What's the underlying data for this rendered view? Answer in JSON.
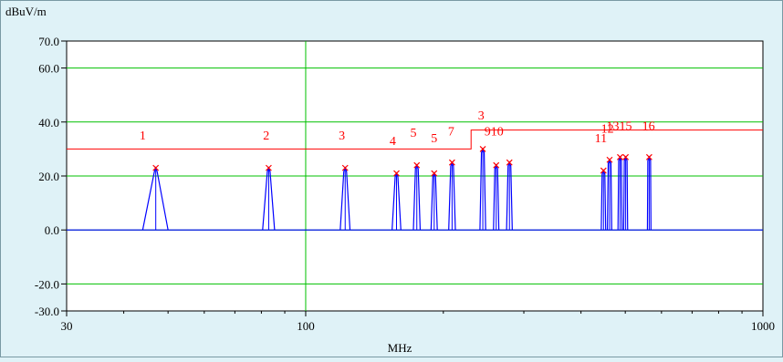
{
  "chart_data": {
    "type": "line",
    "title": "",
    "ylabel": "dBuV/m",
    "xlabel": "MHz",
    "xscale": "log",
    "xlim": [
      30,
      1000
    ],
    "ylim": [
      -30,
      70
    ],
    "yticks": [
      -30,
      -20,
      0,
      20,
      40,
      60,
      70
    ],
    "ytick_labels": [
      "-30.0",
      "-20.0",
      "0.0",
      "20.0",
      "40.0",
      "60.0",
      "70.0"
    ],
    "xticks": [
      30,
      100,
      1000
    ],
    "xtick_labels": [
      "30",
      "100",
      "1000"
    ],
    "gridlines_y": [
      -20,
      0,
      20,
      40,
      60
    ],
    "gridlines_x": [
      100
    ],
    "colors": {
      "background": "#dff2f7",
      "plot_bg": "#ffffff",
      "grid": "#00c000",
      "spectrum": "#0000ff",
      "limit": "#ff0000",
      "marker": "#ff0000",
      "frame": "#000000"
    },
    "limit_line": {
      "name": "",
      "points": [
        [
          30,
          30
        ],
        [
          230,
          30
        ],
        [
          230,
          37
        ],
        [
          1000,
          37
        ]
      ]
    },
    "spectrum": {
      "baseline": 0,
      "peaks": [
        {
          "freq": 47,
          "level": 23,
          "width_mhz": 3.0
        },
        {
          "freq": 83,
          "level": 23,
          "width_mhz": 2.5
        },
        {
          "freq": 122,
          "level": 23,
          "width_mhz": 3.0
        },
        {
          "freq": 158,
          "level": 21,
          "width_mhz": 3.5
        },
        {
          "freq": 175,
          "level": 24,
          "width_mhz": 3.0
        },
        {
          "freq": 191,
          "level": 21,
          "width_mhz": 3.0
        },
        {
          "freq": 209,
          "level": 25,
          "width_mhz": 3.5
        },
        {
          "freq": 244,
          "level": 30,
          "width_mhz": 3.5
        },
        {
          "freq": 261,
          "level": 24,
          "width_mhz": 3.5
        },
        {
          "freq": 279,
          "level": 25,
          "width_mhz": 4.0
        },
        {
          "freq": 448,
          "level": 22,
          "width_mhz": 5.0
        },
        {
          "freq": 462,
          "level": 26,
          "width_mhz": 5.0
        },
        {
          "freq": 487,
          "level": 27,
          "width_mhz": 5.0
        },
        {
          "freq": 501,
          "level": 27,
          "width_mhz": 5.0
        },
        {
          "freq": 564,
          "level": 27,
          "width_mhz": 5.0
        }
      ]
    },
    "marker_labels": [
      {
        "text": "1",
        "freq": 44,
        "level": 33.5
      },
      {
        "text": "2",
        "freq": 82,
        "level": 33.5
      },
      {
        "text": "3",
        "freq": 120,
        "level": 33.5
      },
      {
        "text": "4",
        "freq": 155,
        "level": 31.5
      },
      {
        "text": "5",
        "freq": 172,
        "level": 34.5
      },
      {
        "text": "5",
        "freq": 191,
        "level": 32.5
      },
      {
        "text": "7",
        "freq": 208,
        "level": 35
      },
      {
        "text": "3",
        "freq": 242,
        "level": 41
      },
      {
        "text": "910",
        "freq": 258,
        "level": 35
      },
      {
        "text": "11",
        "freq": 442,
        "level": 32.5
      },
      {
        "text": "12",
        "freq": 457,
        "level": 36
      },
      {
        "text": "1315",
        "freq": 485,
        "level": 37
      },
      {
        "text": "16",
        "freq": 562,
        "level": 37
      }
    ]
  }
}
